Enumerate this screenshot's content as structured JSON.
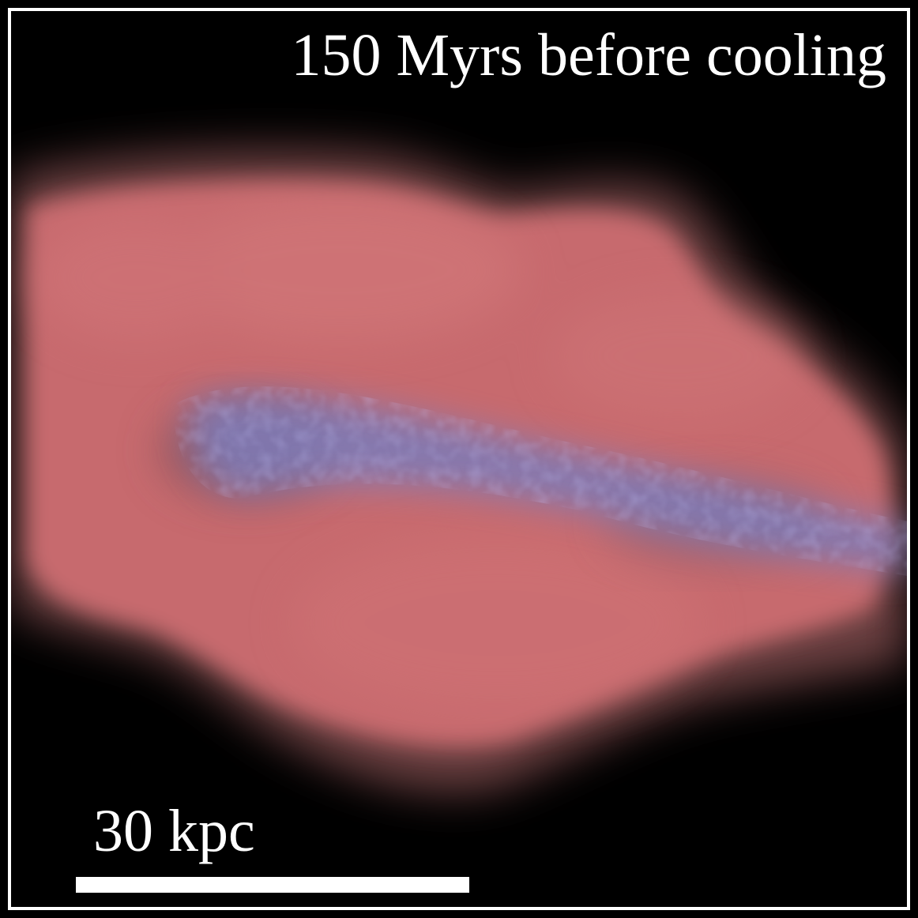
{
  "title": "150 Myrs before cooling",
  "scale_bar": {
    "label": "30 kpc"
  },
  "colors": {
    "background": "#000000",
    "frame": "#ffffff",
    "gas": "#c76a6e",
    "stream": "#7a78b8",
    "text": "#ffffff"
  }
}
